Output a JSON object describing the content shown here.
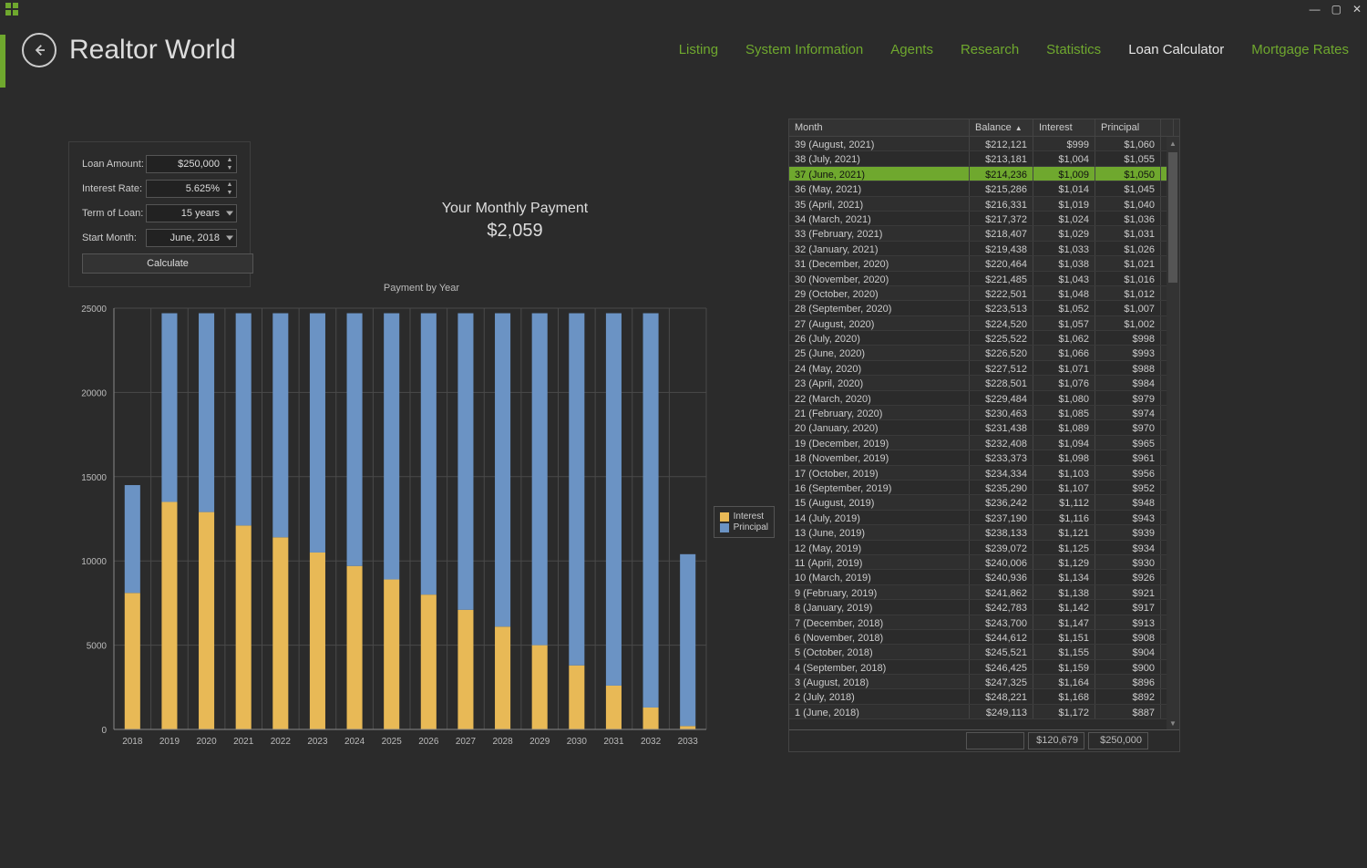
{
  "app": {
    "title": "Realtor World"
  },
  "window_controls": {
    "min": "—",
    "max": "▢",
    "close": "✕"
  },
  "nav": {
    "items": [
      {
        "label": "Listing",
        "active": false
      },
      {
        "label": "System Information",
        "active": false
      },
      {
        "label": "Agents",
        "active": false
      },
      {
        "label": "Research",
        "active": false
      },
      {
        "label": "Statistics",
        "active": false
      },
      {
        "label": "Loan Calculator",
        "active": true
      },
      {
        "label": "Mortgage Rates",
        "active": false
      }
    ]
  },
  "form": {
    "loan_amount": {
      "label": "Loan Amount:",
      "value": "$250,000"
    },
    "interest_rate": {
      "label": "Interest Rate:",
      "value": "5.625%"
    },
    "term": {
      "label": "Term of Loan:",
      "value": "15 years"
    },
    "start_month": {
      "label": "Start Month:",
      "value": "June, 2018"
    },
    "calculate_label": "Calculate"
  },
  "payment": {
    "label": "Your Monthly Payment",
    "value": "$2,059"
  },
  "chart": {
    "title": "Payment by Year",
    "type": "stacked-bar",
    "categories": [
      "2018",
      "2019",
      "2020",
      "2021",
      "2022",
      "2023",
      "2024",
      "2025",
      "2026",
      "2027",
      "2028",
      "2029",
      "2030",
      "2031",
      "2032",
      "2033"
    ],
    "series": [
      {
        "name": "Interest",
        "color": "#e8b956",
        "data": [
          8100,
          13500,
          12900,
          12100,
          11400,
          10500,
          9700,
          8900,
          8000,
          7100,
          6100,
          5000,
          3800,
          2600,
          1300,
          200
        ]
      },
      {
        "name": "Principal",
        "color": "#6b93c4",
        "data": [
          6400,
          11200,
          11800,
          12600,
          13300,
          14200,
          15000,
          15800,
          16700,
          17600,
          18600,
          19700,
          20900,
          22100,
          23400,
          10200
        ]
      }
    ],
    "ylim": [
      0,
      25000
    ],
    "yticks": [
      0,
      5000,
      10000,
      15000,
      20000,
      25000
    ],
    "axis_color": "#888",
    "grid_color": "#4a4a4a",
    "background": "#2b2b2b",
    "bar_width": 0.42,
    "legend_labels": [
      "Interest",
      "Principal"
    ],
    "font_size_axis": 10
  },
  "table": {
    "columns": [
      {
        "label": "Month"
      },
      {
        "label": "Balance",
        "sort": "asc"
      },
      {
        "label": "Interest"
      },
      {
        "label": "Principal"
      }
    ],
    "selected_index": 2,
    "rows": [
      {
        "month": "39 (August, 2021)",
        "balance": "$212,121",
        "interest": "$999",
        "principal": "$1,060"
      },
      {
        "month": "38 (July, 2021)",
        "balance": "$213,181",
        "interest": "$1,004",
        "principal": "$1,055"
      },
      {
        "month": "37 (June, 2021)",
        "balance": "$214,236",
        "interest": "$1,009",
        "principal": "$1,050"
      },
      {
        "month": "36 (May, 2021)",
        "balance": "$215,286",
        "interest": "$1,014",
        "principal": "$1,045"
      },
      {
        "month": "35 (April, 2021)",
        "balance": "$216,331",
        "interest": "$1,019",
        "principal": "$1,040"
      },
      {
        "month": "34 (March, 2021)",
        "balance": "$217,372",
        "interest": "$1,024",
        "principal": "$1,036"
      },
      {
        "month": "33 (February, 2021)",
        "balance": "$218,407",
        "interest": "$1,029",
        "principal": "$1,031"
      },
      {
        "month": "32 (January, 2021)",
        "balance": "$219,438",
        "interest": "$1,033",
        "principal": "$1,026"
      },
      {
        "month": "31 (December, 2020)",
        "balance": "$220,464",
        "interest": "$1,038",
        "principal": "$1,021"
      },
      {
        "month": "30 (November, 2020)",
        "balance": "$221,485",
        "interest": "$1,043",
        "principal": "$1,016"
      },
      {
        "month": "29 (October, 2020)",
        "balance": "$222,501",
        "interest": "$1,048",
        "principal": "$1,012"
      },
      {
        "month": "28 (September, 2020)",
        "balance": "$223,513",
        "interest": "$1,052",
        "principal": "$1,007"
      },
      {
        "month": "27 (August, 2020)",
        "balance": "$224,520",
        "interest": "$1,057",
        "principal": "$1,002"
      },
      {
        "month": "26 (July, 2020)",
        "balance": "$225,522",
        "interest": "$1,062",
        "principal": "$998"
      },
      {
        "month": "25 (June, 2020)",
        "balance": "$226,520",
        "interest": "$1,066",
        "principal": "$993"
      },
      {
        "month": "24 (May, 2020)",
        "balance": "$227,512",
        "interest": "$1,071",
        "principal": "$988"
      },
      {
        "month": "23 (April, 2020)",
        "balance": "$228,501",
        "interest": "$1,076",
        "principal": "$984"
      },
      {
        "month": "22 (March, 2020)",
        "balance": "$229,484",
        "interest": "$1,080",
        "principal": "$979"
      },
      {
        "month": "21 (February, 2020)",
        "balance": "$230,463",
        "interest": "$1,085",
        "principal": "$974"
      },
      {
        "month": "20 (January, 2020)",
        "balance": "$231,438",
        "interest": "$1,089",
        "principal": "$970"
      },
      {
        "month": "19 (December, 2019)",
        "balance": "$232,408",
        "interest": "$1,094",
        "principal": "$965"
      },
      {
        "month": "18 (November, 2019)",
        "balance": "$233,373",
        "interest": "$1,098",
        "principal": "$961"
      },
      {
        "month": "17 (October, 2019)",
        "balance": "$234,334",
        "interest": "$1,103",
        "principal": "$956"
      },
      {
        "month": "16 (September, 2019)",
        "balance": "$235,290",
        "interest": "$1,107",
        "principal": "$952"
      },
      {
        "month": "15 (August, 2019)",
        "balance": "$236,242",
        "interest": "$1,112",
        "principal": "$948"
      },
      {
        "month": "14 (July, 2019)",
        "balance": "$237,190",
        "interest": "$1,116",
        "principal": "$943"
      },
      {
        "month": "13 (June, 2019)",
        "balance": "$238,133",
        "interest": "$1,121",
        "principal": "$939"
      },
      {
        "month": "12 (May, 2019)",
        "balance": "$239,072",
        "interest": "$1,125",
        "principal": "$934"
      },
      {
        "month": "11 (April, 2019)",
        "balance": "$240,006",
        "interest": "$1,129",
        "principal": "$930"
      },
      {
        "month": "10 (March, 2019)",
        "balance": "$240,936",
        "interest": "$1,134",
        "principal": "$926"
      },
      {
        "month": "9 (February, 2019)",
        "balance": "$241,862",
        "interest": "$1,138",
        "principal": "$921"
      },
      {
        "month": "8 (January, 2019)",
        "balance": "$242,783",
        "interest": "$1,142",
        "principal": "$917"
      },
      {
        "month": "7 (December, 2018)",
        "balance": "$243,700",
        "interest": "$1,147",
        "principal": "$913"
      },
      {
        "month": "6 (November, 2018)",
        "balance": "$244,612",
        "interest": "$1,151",
        "principal": "$908"
      },
      {
        "month": "5 (October, 2018)",
        "balance": "$245,521",
        "interest": "$1,155",
        "principal": "$904"
      },
      {
        "month": "4 (September, 2018)",
        "balance": "$246,425",
        "interest": "$1,159",
        "principal": "$900"
      },
      {
        "month": "3 (August, 2018)",
        "balance": "$247,325",
        "interest": "$1,164",
        "principal": "$896"
      },
      {
        "month": "2 (July, 2018)",
        "balance": "$248,221",
        "interest": "$1,168",
        "principal": "$892"
      },
      {
        "month": "1 (June, 2018)",
        "balance": "$249,113",
        "interest": "$1,172",
        "principal": "$887"
      }
    ],
    "footer": {
      "interest_total": "$120,679",
      "principal_total": "$250,000"
    },
    "scroll": {
      "thumb_top_pct": 3,
      "thumb_height_pct": 22
    }
  },
  "colors": {
    "accent": "#6fa82e",
    "bg": "#2b2b2b",
    "panel_border": "#444",
    "text": "#ccc"
  }
}
